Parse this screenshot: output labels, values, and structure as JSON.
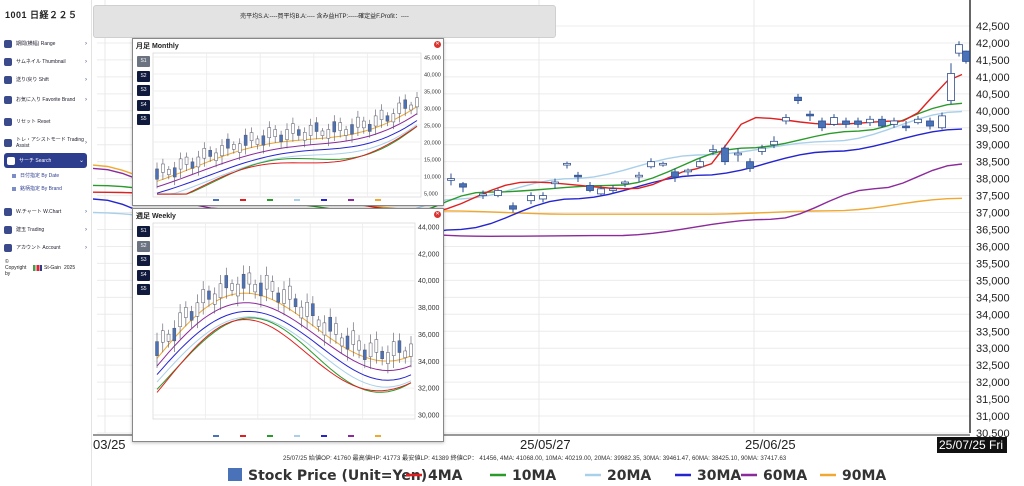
{
  "brand": "1001 日経２２５",
  "sidebar": {
    "items": [
      {
        "label": "期間(横幅) Range",
        "icon": "calendar-icon",
        "chev": "›"
      },
      {
        "label": "サムネイル Thumbnail",
        "icon": "thumbnail-icon",
        "chev": "›"
      },
      {
        "label": "送り/戻り Shift",
        "icon": "shift-icon",
        "chev": "›"
      },
      {
        "label": "お気に入り Favorite Brand",
        "icon": "star-icon",
        "chev": "›"
      },
      {
        "label": "リセット Reset",
        "icon": "reset-icon",
        "chev": ""
      },
      {
        "label": "トレ・アシストモード Trading Assist",
        "icon": "assist-icon",
        "chev": "›"
      },
      {
        "label": "サーチ Search",
        "icon": "search-icon",
        "chev": "⌄"
      },
      {
        "label": "W.チャート W.Chart",
        "icon": "wchart-icon",
        "chev": "›"
      },
      {
        "label": "建玉 Trading",
        "icon": "trading-icon",
        "chev": "›"
      },
      {
        "label": "アカウント Account",
        "icon": "account-icon",
        "chev": "›"
      }
    ],
    "sub_items": [
      "日付指定 By Date",
      "銘柄指定 By Brand"
    ],
    "copyright": "© Copyright by",
    "logo_text": "St-Gain",
    "year": "2025"
  },
  "topbar": {
    "text": "売平均S.A:----買平均B.A:---- 含み益HTP:-----確定益F.Profit：----"
  },
  "main": {
    "y_ticks": [
      "42,500",
      "42,000",
      "41,500",
      "41,000",
      "40,500",
      "40,000",
      "39,500",
      "39,000",
      "38,500",
      "38,000",
      "37,500",
      "37,000",
      "36,500",
      "36,000",
      "35,500",
      "35,000",
      "34,500",
      "34,000",
      "33,500",
      "33,000",
      "32,500",
      "32,000",
      "31,500",
      "31,000",
      "30,500"
    ],
    "x_labels": [
      "03/25",
      "25/05/27",
      "25/06/25"
    ],
    "current_date": "25/07/25 Fri",
    "info_line": "25/07/25 始値OP: 41760 最高値HP: 41773 最安値LP: 41389 終値CP： 41456, 4MA: 41068.00, 10MA: 40219.00, 20MA: 39982.35, 30MA: 39461.47, 60MA: 38425.10, 90MA: 37417.63",
    "legend": [
      {
        "label": "Stock Price (Unit=Yen)",
        "color": "#4a72b8",
        "kind": "box"
      },
      {
        "label": "4MA",
        "color": "#e02020",
        "kind": "line"
      },
      {
        "label": "10MA",
        "color": "#2a9a2a",
        "kind": "line"
      },
      {
        "label": "20MA",
        "color": "#a9d0ea",
        "kind": "line"
      },
      {
        "label": "30MA",
        "color": "#2525d0",
        "kind": "line"
      },
      {
        "label": "60MA",
        "color": "#8b2a9a",
        "kind": "line"
      },
      {
        "label": "90MA",
        "color": "#f0a830",
        "kind": "line"
      }
    ]
  },
  "monthly": {
    "title": "月足 Monthly",
    "buttons": [
      "S1",
      "S2",
      "S3",
      "S4",
      "S5"
    ],
    "y_ticks": [
      "45,000",
      "40,000",
      "35,000",
      "30,000",
      "25,000",
      "20,000",
      "15,000",
      "10,000",
      "5,000"
    ]
  },
  "weekly": {
    "title": "週足 Weekly",
    "buttons": [
      "S1",
      "S2",
      "S3",
      "S4",
      "S5"
    ],
    "y_ticks": [
      "44,000",
      "42,000",
      "40,000",
      "38,000",
      "36,000",
      "34,000",
      "32,000",
      "30,000"
    ]
  },
  "colors": {
    "up": "#ffffff",
    "down": "#4a72b8",
    "ma4": "#e02020",
    "ma10": "#2a9a2a",
    "ma20": "#a9d0ea",
    "ma30": "#2525d0",
    "ma60": "#8b2a9a",
    "ma90": "#f0a830"
  },
  "chart_data": {
    "type": "candlestick",
    "x_labels": [
      "03/25",
      "25/05/27",
      "25/06/25",
      "25/07/25"
    ],
    "ylim": [
      30500,
      42500
    ],
    "last_candle": {
      "date": "25/07/25",
      "open": 41760,
      "high": 41773,
      "low": 41389,
      "close": 41456
    },
    "series": [
      {
        "name": "4MA",
        "last": 41068.0
      },
      {
        "name": "10MA",
        "last": 40219.0
      },
      {
        "name": "20MA",
        "last": 39982.35
      },
      {
        "name": "30MA",
        "last": 39461.47
      },
      {
        "name": "60MA",
        "last": 38425.1
      },
      {
        "name": "90MA",
        "last": 37417.63
      }
    ]
  }
}
